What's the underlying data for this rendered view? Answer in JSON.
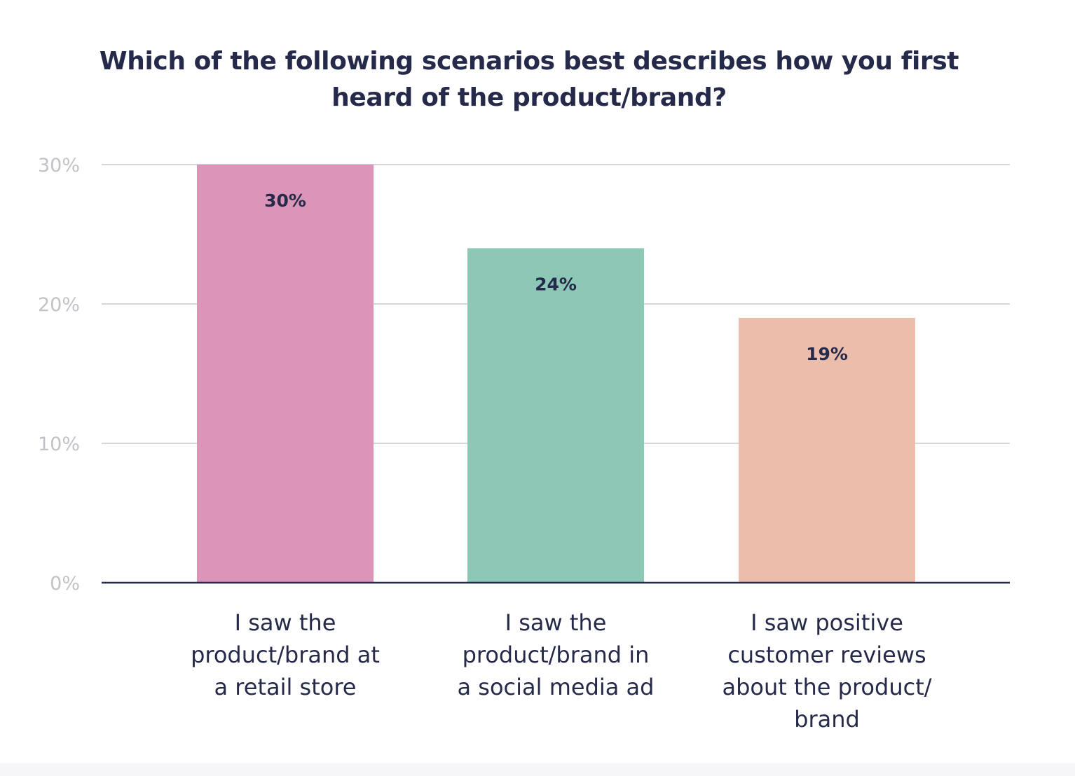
{
  "chart_data": {
    "type": "bar",
    "title_lines": [
      "Which of the following scenarios best describes how you first",
      "heard of the product/brand?"
    ],
    "categories": [
      [
        "I saw the",
        "product/brand at",
        "a retail store"
      ],
      [
        "I saw the",
        "product/brand in",
        "a social media ad"
      ],
      [
        "I saw positive",
        "customer reviews",
        "about the product/",
        "brand"
      ]
    ],
    "values": [
      30,
      24,
      19
    ],
    "data_labels": [
      "30%",
      "24%",
      "19%"
    ],
    "colors": [
      "#db95b9",
      "#8dc7b5",
      "#edbdab"
    ],
    "yticks": [
      0,
      10,
      20,
      30
    ],
    "ytick_labels": [
      "0%",
      "10%",
      "20%",
      "30%"
    ],
    "ylim": [
      0,
      30
    ],
    "grid": true,
    "legend": "none",
    "colors_theme": {
      "title": "#262a4a",
      "data_label": "#262a4a",
      "category_label": "#262a4a",
      "tick_label": "#c2c2c8",
      "grid": "#d6d6da",
      "baseline": "#262a4a"
    }
  }
}
